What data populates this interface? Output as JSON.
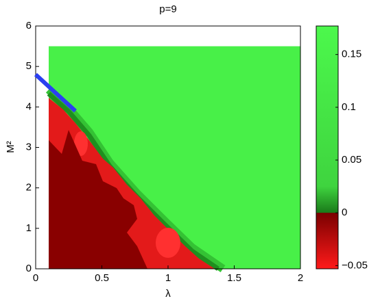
{
  "chart_data": {
    "type": "contour",
    "title": "p=9",
    "xlabel": "λ",
    "ylabel": "M²",
    "xlim": [
      0,
      2
    ],
    "ylim": [
      0,
      6
    ],
    "xticks": [
      0,
      0.5,
      1,
      1.5,
      2
    ],
    "yticks": [
      0,
      1,
      2,
      3,
      4,
      5,
      6
    ],
    "series": [
      {
        "color": "#2b3ff0",
        "x": [
          0,
          0.1,
          0.2,
          0.3
        ],
        "values": [
          4.8,
          4.5,
          4.2,
          3.9
        ]
      }
    ],
    "colorbar": {
      "clim": [
        -0.053,
        0.177
      ],
      "ticks": [
        {
          "value": -0.05,
          "label": "−0.05"
        },
        0,
        0.05,
        0.1,
        0.15
      ]
    }
  }
}
